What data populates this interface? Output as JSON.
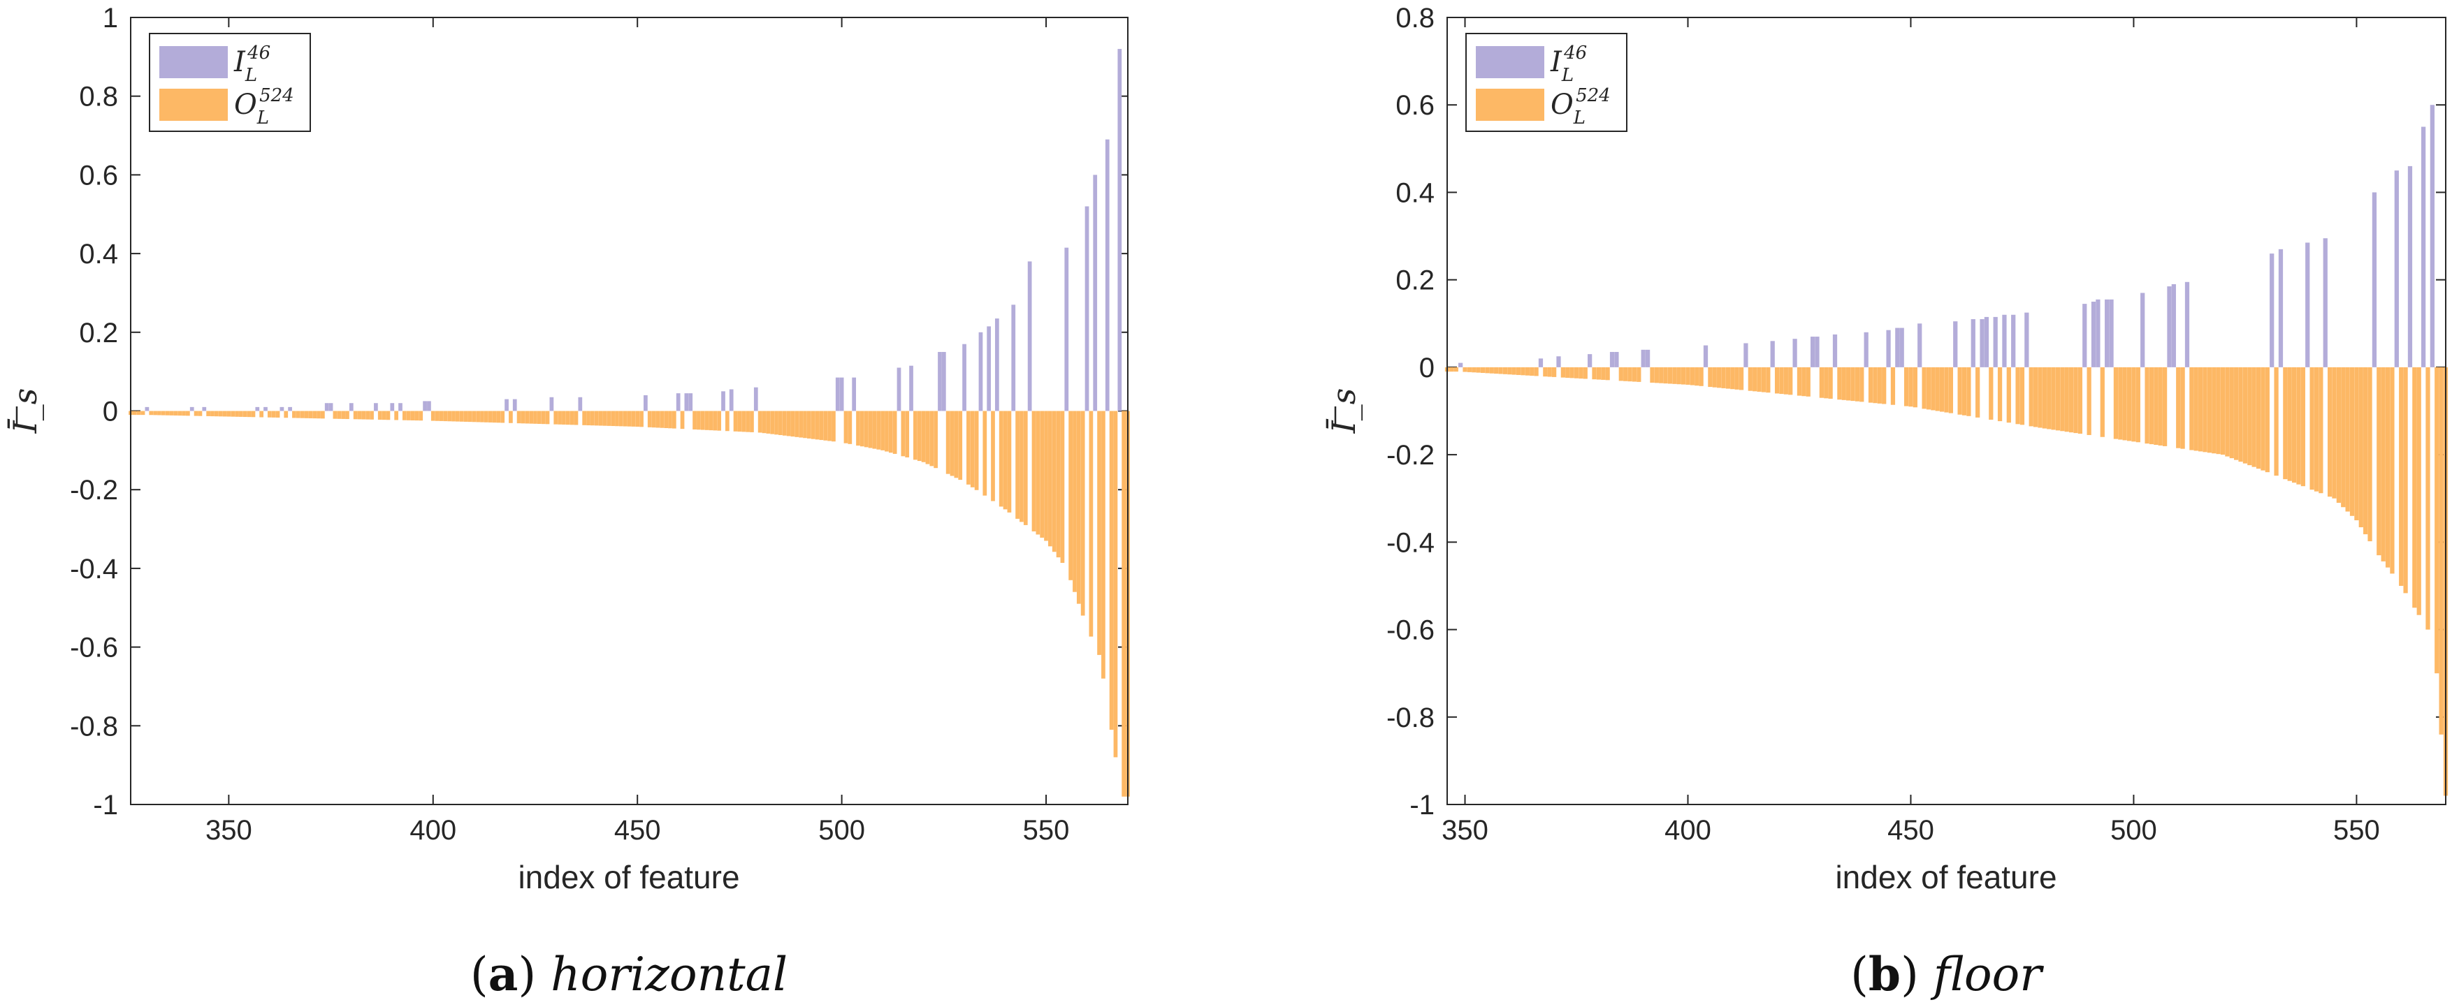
{
  "chart_data": [
    {
      "type": "bar",
      "subtitle": "horizontal",
      "panel_label": "a",
      "xlabel": "index of feature",
      "ylabel": "Ī_s",
      "xlim": [
        326,
        570
      ],
      "ylim": [
        -1,
        1
      ],
      "xticks": [
        350,
        400,
        450,
        500,
        550
      ],
      "yticks": [
        1,
        0.8,
        0.6,
        0.4,
        0.2,
        0,
        -0.2,
        -0.4,
        -0.6,
        -0.8,
        -1
      ],
      "ytick_labels": [
        "1",
        "0.8",
        "0.6",
        "0.4",
        "0.2",
        "0",
        "-0.2",
        "-0.4",
        "-0.6",
        "-0.8",
        "-1"
      ],
      "legend": {
        "position": "top-left",
        "entries": [
          {
            "name": "I_L^46",
            "main": "I",
            "sub": "L",
            "sup": "46",
            "color": "#b3acd9"
          },
          {
            "name": "O_L^524",
            "main": "O",
            "sub": "L",
            "sup": "524",
            "color": "#fdb865"
          }
        ]
      },
      "series": [
        {
          "name": "I_L^46",
          "color": "#b3acd9",
          "x": [
            330,
            341,
            344,
            357,
            359,
            363,
            365,
            374,
            375,
            380,
            386,
            390,
            392,
            398,
            399,
            418,
            420,
            429,
            436,
            452,
            460,
            462,
            463,
            471,
            473,
            479,
            499,
            500,
            503,
            514,
            517,
            524,
            525,
            530,
            534,
            536,
            538,
            542,
            546,
            555,
            560,
            562,
            565,
            568
          ],
          "values": [
            0.01,
            0.01,
            0.01,
            0.01,
            0.01,
            0.01,
            0.01,
            0.02,
            0.02,
            0.02,
            0.02,
            0.02,
            0.02,
            0.025,
            0.025,
            0.03,
            0.03,
            0.035,
            0.035,
            0.04,
            0.045,
            0.045,
            0.045,
            0.05,
            0.055,
            0.06,
            0.085,
            0.085,
            0.085,
            0.11,
            0.115,
            0.15,
            0.15,
            0.17,
            0.2,
            0.215,
            0.235,
            0.27,
            0.38,
            0.415,
            0.52,
            0.6,
            0.69,
            0.92
          ]
        },
        {
          "name": "O_L^524",
          "color": "#fdb865",
          "curve": "descending magnitude, one bar per remaining index from 326 to 570",
          "x": [
            330,
            400,
            450,
            480,
            500,
            510,
            520,
            530,
            540,
            550,
            555,
            560,
            563,
            565,
            567,
            569
          ],
          "values": [
            -0.01,
            -0.025,
            -0.04,
            -0.055,
            -0.08,
            -0.1,
            -0.13,
            -0.18,
            -0.25,
            -0.33,
            -0.4,
            -0.55,
            -0.62,
            -0.74,
            -0.88,
            -0.98
          ]
        }
      ]
    },
    {
      "type": "bar",
      "subtitle": "floor",
      "panel_label": "b",
      "xlabel": "index of feature",
      "ylabel": "Ī_s",
      "xlim": [
        346,
        570
      ],
      "ylim": [
        -1,
        0.8
      ],
      "xticks": [
        350,
        400,
        450,
        500,
        550
      ],
      "yticks": [
        0.8,
        0.6,
        0.4,
        0.2,
        0,
        -0.2,
        -0.4,
        -0.6,
        -0.8,
        -1
      ],
      "ytick_labels": [
        "0.8",
        "0.6",
        "0.4",
        "0.2",
        "0",
        "-0.2",
        "-0.4",
        "-0.6",
        "-0.8",
        "-1"
      ],
      "legend": {
        "position": "top-left",
        "entries": [
          {
            "name": "I_L^46",
            "main": "I",
            "sub": "L",
            "sup": "46",
            "color": "#b3acd9"
          },
          {
            "name": "O_L^524",
            "main": "O",
            "sub": "L",
            "sup": "524",
            "color": "#fdb865"
          }
        ]
      },
      "series": [
        {
          "name": "I_L^46",
          "color": "#b3acd9",
          "x": [
            349,
            367,
            371,
            378,
            383,
            384,
            390,
            391,
            404,
            413,
            419,
            424,
            428,
            429,
            433,
            440,
            445,
            447,
            448,
            452,
            460,
            464,
            466,
            467,
            469,
            471,
            473,
            476,
            489,
            491,
            492,
            494,
            495,
            502,
            508,
            509,
            512,
            531,
            533,
            539,
            543,
            554,
            559,
            562,
            565,
            567
          ],
          "values": [
            0.01,
            0.02,
            0.025,
            0.03,
            0.035,
            0.035,
            0.04,
            0.04,
            0.05,
            0.055,
            0.06,
            0.065,
            0.07,
            0.07,
            0.075,
            0.08,
            0.085,
            0.09,
            0.09,
            0.1,
            0.105,
            0.11,
            0.11,
            0.115,
            0.115,
            0.12,
            0.12,
            0.125,
            0.145,
            0.15,
            0.155,
            0.155,
            0.155,
            0.17,
            0.185,
            0.19,
            0.195,
            0.26,
            0.27,
            0.285,
            0.295,
            0.4,
            0.45,
            0.46,
            0.55,
            0.6
          ]
        },
        {
          "name": "O_L^524",
          "color": "#fdb865",
          "curve": "descending magnitude, one bar per remaining index from 346 to 570",
          "x": [
            349,
            400,
            450,
            480,
            500,
            520,
            530,
            540,
            545,
            550,
            555,
            560,
            563,
            566,
            568,
            570
          ],
          "values": [
            -0.01,
            -0.04,
            -0.09,
            -0.14,
            -0.17,
            -0.2,
            -0.24,
            -0.28,
            -0.3,
            -0.35,
            -0.43,
            -0.5,
            -0.55,
            -0.6,
            -0.7,
            -0.98
          ]
        }
      ]
    }
  ]
}
